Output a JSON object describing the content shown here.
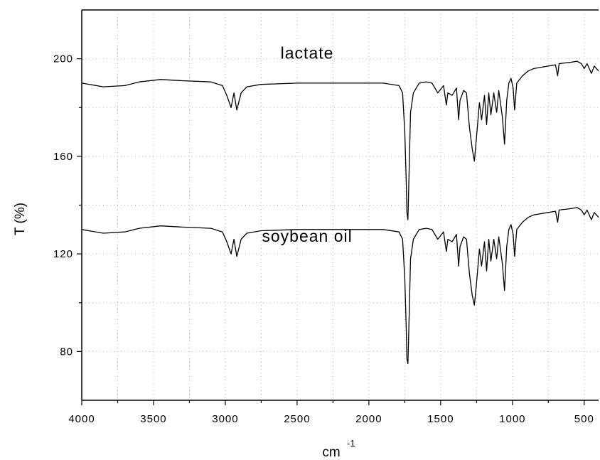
{
  "chart_data": {
    "type": "line",
    "xlabel": "cm",
    "xlabel_superscript": "-1",
    "ylabel": "T (%)",
    "xlim": [
      4000,
      400
    ],
    "ylim": [
      60,
      220
    ],
    "x_ticks": [
      4000,
      3500,
      3000,
      2500,
      2000,
      1500,
      1000,
      500
    ],
    "y_ticks": [
      80,
      120,
      160,
      200
    ],
    "grid": true,
    "line_color": "#000000",
    "annotations": [
      {
        "text": "lactate",
        "x": 2430,
        "y": 200
      },
      {
        "text": "soybean oil",
        "x": 2430,
        "y": 125
      }
    ],
    "series": [
      {
        "name": "lactate",
        "points": [
          [
            4000,
            190
          ],
          [
            3850,
            188.5
          ],
          [
            3700,
            189
          ],
          [
            3600,
            190.5
          ],
          [
            3450,
            191.5
          ],
          [
            3300,
            191
          ],
          [
            3100,
            190.5
          ],
          [
            3020,
            189
          ],
          [
            2990,
            185
          ],
          [
            2960,
            180
          ],
          [
            2940,
            186
          ],
          [
            2920,
            179
          ],
          [
            2890,
            186
          ],
          [
            2850,
            188.5
          ],
          [
            2750,
            189.5
          ],
          [
            2500,
            190
          ],
          [
            2200,
            190
          ],
          [
            1900,
            190
          ],
          [
            1790,
            189
          ],
          [
            1765,
            186
          ],
          [
            1750,
            170
          ],
          [
            1740,
            150
          ],
          [
            1735,
            137
          ],
          [
            1728,
            134
          ],
          [
            1722,
            148
          ],
          [
            1710,
            178
          ],
          [
            1690,
            186
          ],
          [
            1650,
            190
          ],
          [
            1600,
            190.5
          ],
          [
            1560,
            190
          ],
          [
            1520,
            186
          ],
          [
            1480,
            189
          ],
          [
            1460,
            181
          ],
          [
            1450,
            186
          ],
          [
            1420,
            185
          ],
          [
            1390,
            188
          ],
          [
            1375,
            175
          ],
          [
            1365,
            183
          ],
          [
            1340,
            187
          ],
          [
            1320,
            186
          ],
          [
            1300,
            172
          ],
          [
            1280,
            163
          ],
          [
            1265,
            158
          ],
          [
            1250,
            168
          ],
          [
            1230,
            182
          ],
          [
            1215,
            175
          ],
          [
            1195,
            185
          ],
          [
            1180,
            173
          ],
          [
            1165,
            186
          ],
          [
            1150,
            177
          ],
          [
            1130,
            186
          ],
          [
            1110,
            178
          ],
          [
            1095,
            187
          ],
          [
            1070,
            176
          ],
          [
            1055,
            165
          ],
          [
            1040,
            183
          ],
          [
            1025,
            190
          ],
          [
            1010,
            192
          ],
          [
            995,
            188
          ],
          [
            985,
            179
          ],
          [
            970,
            190
          ],
          [
            930,
            193
          ],
          [
            890,
            195
          ],
          [
            850,
            196
          ],
          [
            800,
            196.5
          ],
          [
            750,
            197
          ],
          [
            700,
            197.5
          ],
          [
            685,
            193
          ],
          [
            675,
            198
          ],
          [
            600,
            198.5
          ],
          [
            550,
            199
          ],
          [
            520,
            198
          ],
          [
            500,
            196
          ],
          [
            480,
            198
          ],
          [
            450,
            194
          ],
          [
            430,
            197
          ],
          [
            400,
            195
          ]
        ]
      },
      {
        "name": "soybean oil",
        "points": [
          [
            4000,
            130
          ],
          [
            3850,
            128.5
          ],
          [
            3700,
            129
          ],
          [
            3600,
            130.5
          ],
          [
            3450,
            131.5
          ],
          [
            3300,
            131
          ],
          [
            3100,
            130.5
          ],
          [
            3020,
            129
          ],
          [
            2990,
            125
          ],
          [
            2960,
            120
          ],
          [
            2940,
            126
          ],
          [
            2920,
            119
          ],
          [
            2890,
            126
          ],
          [
            2850,
            128.5
          ],
          [
            2750,
            129.5
          ],
          [
            2500,
            130
          ],
          [
            2200,
            130
          ],
          [
            1900,
            130
          ],
          [
            1790,
            129
          ],
          [
            1765,
            126
          ],
          [
            1750,
            110
          ],
          [
            1740,
            90
          ],
          [
            1735,
            77
          ],
          [
            1728,
            75
          ],
          [
            1722,
            88
          ],
          [
            1710,
            118
          ],
          [
            1690,
            126
          ],
          [
            1650,
            130
          ],
          [
            1600,
            130.5
          ],
          [
            1560,
            130
          ],
          [
            1520,
            126
          ],
          [
            1480,
            129
          ],
          [
            1460,
            121
          ],
          [
            1450,
            126
          ],
          [
            1420,
            125
          ],
          [
            1390,
            128
          ],
          [
            1375,
            115
          ],
          [
            1365,
            123
          ],
          [
            1340,
            127
          ],
          [
            1320,
            126
          ],
          [
            1300,
            112
          ],
          [
            1280,
            103
          ],
          [
            1265,
            99
          ],
          [
            1250,
            108
          ],
          [
            1230,
            122
          ],
          [
            1215,
            115
          ],
          [
            1195,
            125
          ],
          [
            1180,
            113
          ],
          [
            1165,
            126
          ],
          [
            1150,
            117
          ],
          [
            1130,
            126
          ],
          [
            1110,
            118
          ],
          [
            1095,
            127
          ],
          [
            1070,
            116
          ],
          [
            1055,
            105
          ],
          [
            1040,
            123
          ],
          [
            1025,
            130
          ],
          [
            1010,
            132
          ],
          [
            995,
            128
          ],
          [
            985,
            119
          ],
          [
            970,
            130
          ],
          [
            930,
            133
          ],
          [
            890,
            135
          ],
          [
            850,
            136
          ],
          [
            800,
            136.5
          ],
          [
            750,
            137
          ],
          [
            700,
            137.5
          ],
          [
            685,
            133
          ],
          [
            675,
            138
          ],
          [
            600,
            138.5
          ],
          [
            550,
            139
          ],
          [
            520,
            138
          ],
          [
            500,
            136
          ],
          [
            480,
            138
          ],
          [
            450,
            134
          ],
          [
            430,
            137
          ],
          [
            400,
            135
          ]
        ]
      }
    ]
  }
}
